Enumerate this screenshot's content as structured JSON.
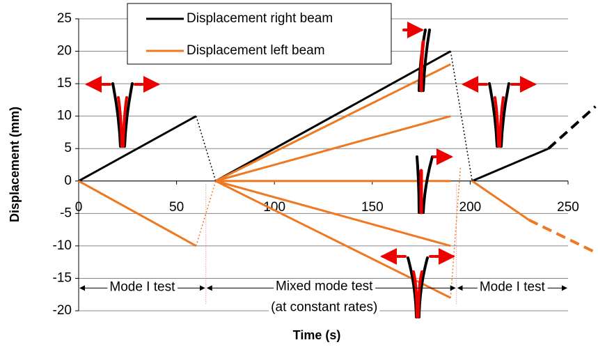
{
  "chart_data": {
    "type": "line",
    "x_label": "Time (s)",
    "y_label": "Displacement (mm)",
    "xlim": [
      0,
      250
    ],
    "xticks": [
      0,
      50,
      100,
      150,
      200,
      250
    ],
    "ylim": [
      -20,
      25
    ],
    "yticks": [
      -20,
      -15,
      -10,
      -5,
      0,
      5,
      10,
      15,
      20,
      25
    ],
    "grid": true,
    "series": [
      {
        "name": "Displacement right beam",
        "color": "#000000",
        "lines": [
          {
            "style": "solid",
            "x": [
              0,
              60
            ],
            "y": [
              0,
              10
            ]
          },
          {
            "style": "dotted",
            "x": [
              60,
              70
            ],
            "y": [
              10,
              0
            ]
          },
          {
            "style": "solid",
            "x": [
              70,
              190
            ],
            "y": [
              0,
              20
            ]
          },
          {
            "style": "dotted",
            "x": [
              190,
              201
            ],
            "y": [
              20,
              0
            ]
          },
          {
            "style": "solid",
            "x": [
              201,
              240
            ],
            "y": [
              0,
              5
            ]
          },
          {
            "style": "dashed",
            "x": [
              240,
              264
            ],
            "y": [
              5,
              11.5
            ]
          }
        ]
      },
      {
        "name": "Displacement left beam",
        "color": "#f07820",
        "lines": [
          {
            "style": "solid",
            "x": [
              0,
              60
            ],
            "y": [
              0,
              -10
            ]
          },
          {
            "style": "dotted",
            "x": [
              60,
              70
            ],
            "y": [
              -10,
              0
            ]
          },
          {
            "style": "solid",
            "x": [
              70,
              190
            ],
            "y": [
              0,
              18
            ]
          },
          {
            "style": "solid",
            "x": [
              70,
              190
            ],
            "y": [
              0,
              10
            ]
          },
          {
            "style": "solid",
            "x": [
              70,
              190
            ],
            "y": [
              0,
              0
            ]
          },
          {
            "style": "solid",
            "x": [
              70,
              190
            ],
            "y": [
              0,
              -10
            ]
          },
          {
            "style": "solid",
            "x": [
              70,
              190
            ],
            "y": [
              0,
              -18
            ]
          },
          {
            "style": "dotted",
            "x": [
              190,
              195
            ],
            "y": [
              -18,
              2
            ]
          },
          {
            "style": "solid",
            "x": [
              201,
              230
            ],
            "y": [
              0,
              -6
            ]
          },
          {
            "style": "dashed",
            "x": [
              230,
              264
            ],
            "y": [
              -6,
              -11
            ]
          }
        ]
      }
    ],
    "annotations": [
      "Mode I test",
      "Mixed mode test",
      "(at constant rates)",
      "Mode I test"
    ]
  }
}
